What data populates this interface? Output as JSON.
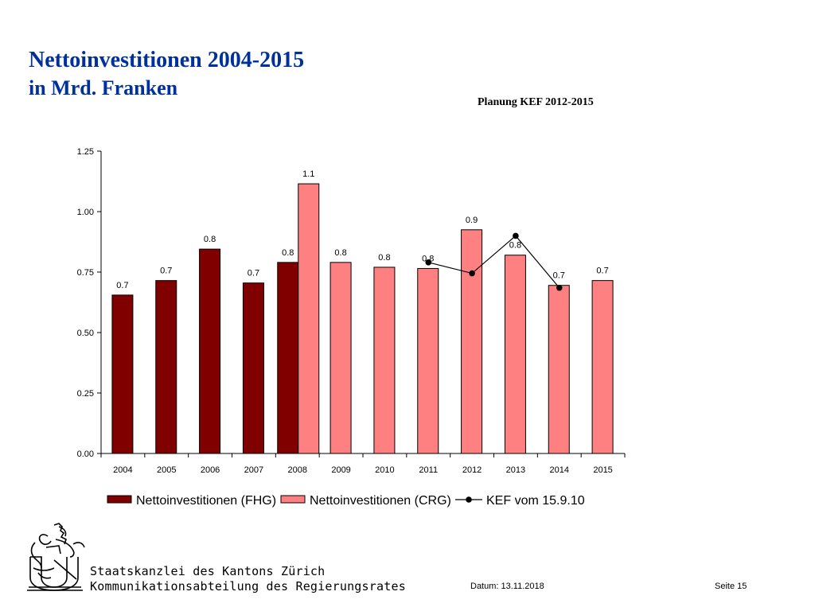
{
  "header": {
    "title": "Nettoinvestitionen 2004-2015",
    "subtitle": "in Mrd. Franken",
    "planning_note": "Planung KEF 2012-2015"
  },
  "chart_data": {
    "type": "bar",
    "categories": [
      "2004",
      "2005",
      "2006",
      "2007",
      "2008",
      "2009",
      "2010",
      "2011",
      "2012",
      "2013",
      "2014",
      "2015"
    ],
    "ylim": [
      0,
      1.25
    ],
    "yticks": [
      "0.00",
      "0.25",
      "0.50",
      "0.75",
      "1.00",
      "1.25"
    ],
    "grid": false,
    "legend_position": "bottom",
    "series": [
      {
        "name": "Nettoinvestitionen (FHG)",
        "color": "#800000",
        "values": [
          0.655,
          0.715,
          0.845,
          0.705,
          0.79,
          null,
          null,
          null,
          null,
          null,
          null,
          null
        ],
        "labels": [
          "0.7",
          "0.7",
          "0.8",
          "0.7",
          "0.8",
          "",
          "",
          "",
          "",
          "",
          "",
          ""
        ]
      },
      {
        "name": "Nettoinvestitionen (CRG)",
        "color": "#ff8080",
        "values": [
          null,
          null,
          null,
          null,
          1.115,
          0.79,
          0.77,
          0.765,
          0.925,
          0.82,
          0.695,
          0.715
        ],
        "labels": [
          "",
          "",
          "",
          "",
          "1.1",
          "0.8",
          "0.8",
          "0.8",
          "0.9",
          "0.8",
          "0.7",
          "0.7"
        ]
      },
      {
        "name": "KEF vom 15.9.10",
        "color": "#000000",
        "type": "line",
        "values": [
          null,
          null,
          null,
          null,
          null,
          null,
          null,
          0.79,
          0.745,
          0.9,
          0.685,
          null
        ]
      }
    ]
  },
  "footer": {
    "org_line1": "Staatskanzlei des Kantons Zürich",
    "org_line2": "Kommunikationsabteilung des Regierungsrates",
    "date": "Datum: 13.11.2018",
    "page": "Seite 15"
  }
}
